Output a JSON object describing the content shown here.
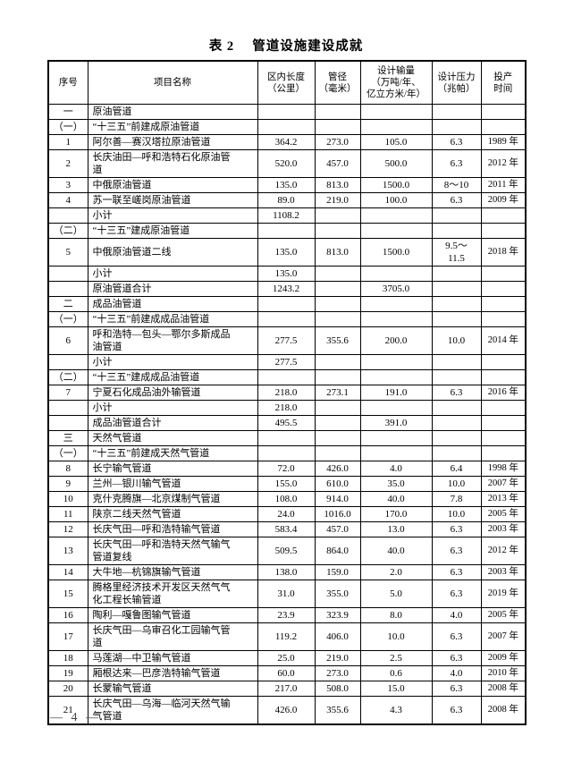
{
  "page": {
    "title": "表 2　 管道设施建设成就",
    "page_number": "— 4 —"
  },
  "table": {
    "headers": [
      "序号",
      "项目名称",
      "区内长度\n（公里）",
      "管径\n（毫米）",
      "设计输量\n（万吨/年、\n亿立方米/年）",
      "设计压力\n（兆帕）",
      "投产\n时间"
    ],
    "rows": [
      [
        "一",
        "原油管道",
        "",
        "",
        "",
        "",
        ""
      ],
      [
        "（一）",
        "“十三五”前建成原油管道",
        "",
        "",
        "",
        "",
        ""
      ],
      [
        "1",
        "阿尔善—赛汉塔拉原油管道",
        "364.2",
        "273.0",
        "105.0",
        "6.3",
        "1989 年"
      ],
      [
        "2",
        "长庆油田—呼和浩特石化原油管\n道",
        "520.0",
        "457.0",
        "500.0",
        "6.3",
        "2012 年"
      ],
      [
        "3",
        "中俄原油管道",
        "135.0",
        "813.0",
        "1500.0",
        "8～10",
        "2011 年"
      ],
      [
        "4",
        "苏一联至嵯岗原油管道",
        "89.0",
        "219.0",
        "100.0",
        "6.3",
        "2009 年"
      ],
      [
        "",
        "小计",
        "1108.2",
        "",
        "",
        "",
        ""
      ],
      [
        "（二）",
        "“十三五”建成原油管道",
        "",
        "",
        "",
        "",
        ""
      ],
      [
        "5",
        "中俄原油管道二线",
        "135.0",
        "813.0",
        "1500.0",
        "9.5～\n11.5",
        "2018 年"
      ],
      [
        "",
        "小计",
        "135.0",
        "",
        "",
        "",
        ""
      ],
      [
        "",
        "原油管道合计",
        "1243.2",
        "",
        "3705.0",
        "",
        ""
      ],
      [
        "二",
        "成品油管道",
        "",
        "",
        "",
        "",
        ""
      ],
      [
        "（一）",
        "“十三五”前建成成品油管道",
        "",
        "",
        "",
        "",
        ""
      ],
      [
        "6",
        "呼和浩特—包头—鄂尔多斯成品\n油管道",
        "277.5",
        "355.6",
        "200.0",
        "10.0",
        "2014 年"
      ],
      [
        "",
        "小计",
        "277.5",
        "",
        "",
        "",
        ""
      ],
      [
        "（二）",
        "“十三五”建成成品油管道",
        "",
        "",
        "",
        "",
        ""
      ],
      [
        "7",
        "宁夏石化成品油外输管道",
        "218.0",
        "273.1",
        "191.0",
        "6.3",
        "2016 年"
      ],
      [
        "",
        "小计",
        "218.0",
        "",
        "",
        "",
        ""
      ],
      [
        "",
        "成品油管道合计",
        "495.5",
        "",
        "391.0",
        "",
        ""
      ],
      [
        "三",
        "天然气管道",
        "",
        "",
        "",
        "",
        ""
      ],
      [
        "（一）",
        "“十三五”前建成天然气管道",
        "",
        "",
        "",
        "",
        ""
      ],
      [
        "8",
        "长宁输气管道",
        "72.0",
        "426.0",
        "4.0",
        "6.4",
        "1998 年"
      ],
      [
        "9",
        "兰州—银川输气管道",
        "155.0",
        "610.0",
        "35.0",
        "10.0",
        "2007 年"
      ],
      [
        "10",
        "克什克腾旗—北京煤制气管道",
        "108.0",
        "914.0",
        "40.0",
        "7.8",
        "2013 年"
      ],
      [
        "11",
        "陕京二线天然气管道",
        "24.0",
        "1016.0",
        "170.0",
        "10.0",
        "2005 年"
      ],
      [
        "12",
        "长庆气田—呼和浩特输气管道",
        "583.4",
        "457.0",
        "13.0",
        "6.3",
        "2003 年"
      ],
      [
        "13",
        "长庆气田—呼和浩特天然气输气\n管道复线",
        "509.5",
        "864.0",
        "40.0",
        "6.3",
        "2012 年"
      ],
      [
        "14",
        "大牛地—杭锦旗输气管道",
        "138.0",
        "159.0",
        "2.0",
        "6.3",
        "2003 年"
      ],
      [
        "15",
        "腾格里经济技术开发区天然气气\n化工程长输管道",
        "31.0",
        "355.0",
        "5.0",
        "6.3",
        "2019 年"
      ],
      [
        "16",
        "陶利—嘎鲁图输气管道",
        "23.9",
        "323.9",
        "8.0",
        "4.0",
        "2005 年"
      ],
      [
        "17",
        "长庆气田—乌审召化工园输气管\n道",
        "119.2",
        "406.0",
        "10.0",
        "6.3",
        "2007 年"
      ],
      [
        "18",
        "马莲湖—中卫输气管道",
        "25.0",
        "219.0",
        "2.5",
        "6.3",
        "2009 年"
      ],
      [
        "19",
        "厢根达来—巴彦浩特输气管道",
        "60.0",
        "273.0",
        "0.6",
        "4.0",
        "2010 年"
      ],
      [
        "20",
        "长蒙输气管道",
        "217.0",
        "508.0",
        "15.0",
        "6.3",
        "2008 年"
      ],
      [
        "21",
        "长庆气田—乌海—临河天然气输\n气管道",
        "426.0",
        "355.6",
        "4.3",
        "6.3",
        "2008 年"
      ]
    ]
  }
}
